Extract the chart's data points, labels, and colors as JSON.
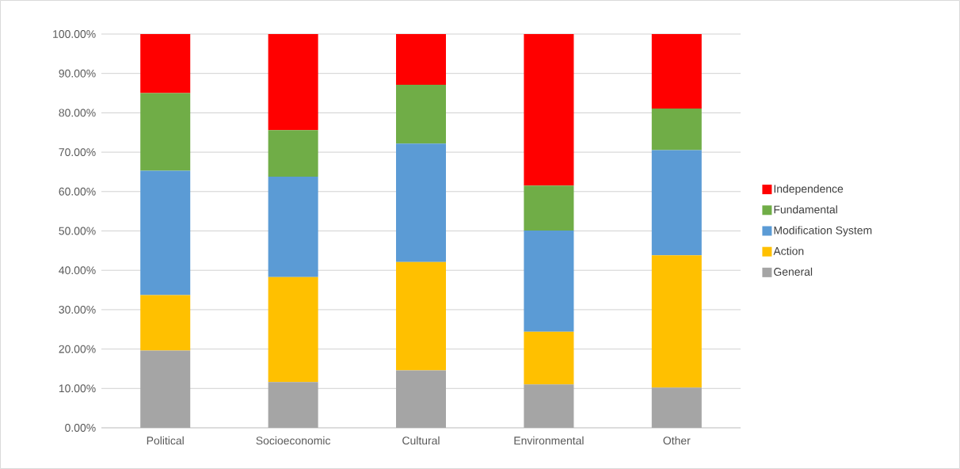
{
  "chart_data": {
    "type": "bar",
    "stacked": true,
    "legend": "right",
    "grid": "y",
    "categories": [
      "Political",
      "Socioeconomic",
      "Cultural",
      "Environmental",
      "Other"
    ],
    "series": [
      {
        "name": "General",
        "color": "#a5a5a5",
        "values": [
          19.6,
          11.6,
          14.6,
          11.0,
          10.2
        ]
      },
      {
        "name": "Action",
        "color": "#ffc000",
        "values": [
          14.1,
          26.7,
          27.5,
          13.4,
          33.6
        ]
      },
      {
        "name": "Modification System",
        "color": "#5b9bd5",
        "values": [
          31.6,
          25.5,
          30.1,
          25.7,
          26.7
        ]
      },
      {
        "name": "Fundamental",
        "color": "#70ad47",
        "values": [
          19.7,
          11.8,
          14.9,
          11.4,
          10.6
        ]
      },
      {
        "name": "Independence",
        "color": "#ff0000",
        "values": [
          15.0,
          24.4,
          12.9,
          38.5,
          18.9
        ]
      }
    ],
    "ylim": [
      0,
      100
    ],
    "yticks": [
      {
        "value": 0,
        "label": "0.00%"
      },
      {
        "value": 10,
        "label": "10.00%"
      },
      {
        "value": 20,
        "label": "20.00%"
      },
      {
        "value": 30,
        "label": "30.00%"
      },
      {
        "value": 40,
        "label": "40.00%"
      },
      {
        "value": 50,
        "label": "50.00%"
      },
      {
        "value": 60,
        "label": "60.00%"
      },
      {
        "value": 70,
        "label": "70.00%"
      },
      {
        "value": 80,
        "label": "80.00%"
      },
      {
        "value": 90,
        "label": "90.00%"
      },
      {
        "value": 100,
        "label": "100.00%"
      }
    ]
  }
}
